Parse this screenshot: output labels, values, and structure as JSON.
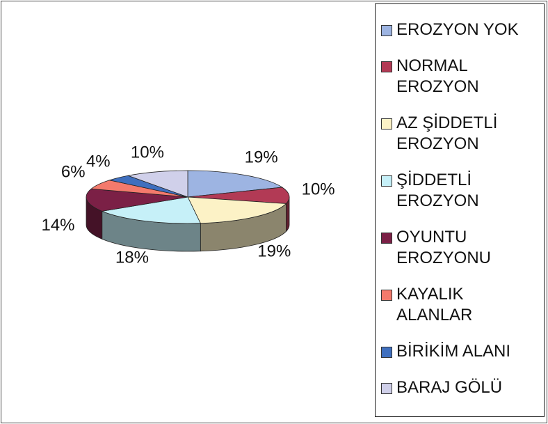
{
  "chart_data": {
    "type": "pie3d",
    "categories": [
      "EROZYON YOK",
      "NORMAL EROZYON",
      "AZ ŞİDDETLİ EROZYON",
      "ŞİDDETLİ EROZYON",
      "OYUNTU EROZYONU",
      "KAYALIK ALANLAR",
      "BİRİKİM ALANI",
      "BARAJ GÖLÜ"
    ],
    "values": [
      19,
      10,
      19,
      18,
      14,
      6,
      4,
      10
    ],
    "value_labels": [
      "19%",
      "10%",
      "19%",
      "18%",
      "14%",
      "6%",
      "4%",
      "10%"
    ],
    "colors": [
      "#9db4e2",
      "#b23a55",
      "#fcf2c6",
      "#c6f0f8",
      "#7b2046",
      "#f47a6c",
      "#3f6fbe",
      "#d0d0ea"
    ],
    "legend": "right"
  }
}
